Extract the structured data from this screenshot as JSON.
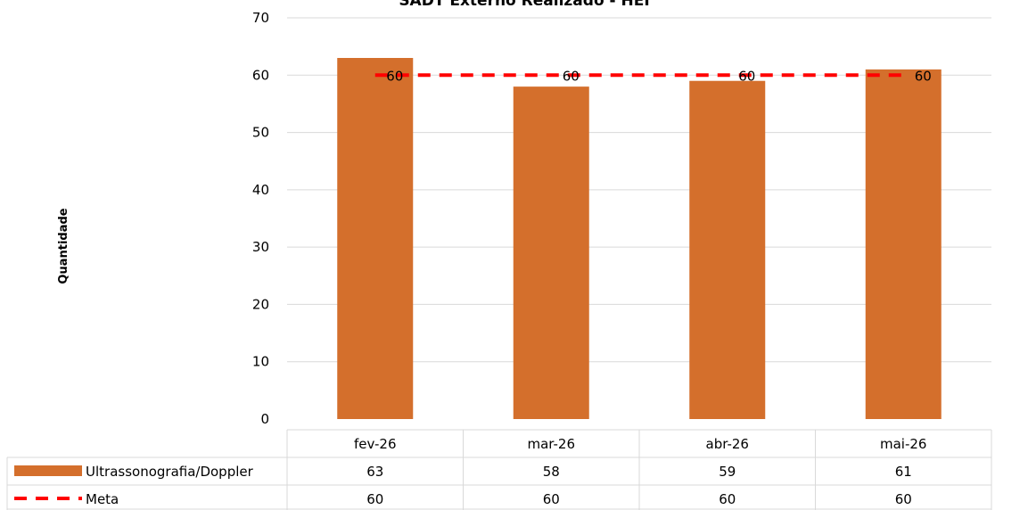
{
  "chart_data": {
    "type": "bar",
    "title": "SADT Externo Realizado - HEI",
    "ylabel": "Quantidade",
    "xlabel": "",
    "categories": [
      "fev-26",
      "mar-26",
      "abr-26",
      "mai-26"
    ],
    "ylim": [
      0,
      70
    ],
    "yticks": [
      0,
      10,
      20,
      30,
      40,
      50,
      60,
      70
    ],
    "grid": true,
    "legend": "bottom-data-table",
    "series": [
      {
        "name": "Ultrassonografia/Doppler",
        "kind": "bar",
        "color": "#d46f2c",
        "values": [
          63,
          58,
          59,
          61
        ]
      },
      {
        "name": "Meta",
        "kind": "line-dashed",
        "color": "#ff0000",
        "values": [
          60,
          60,
          60,
          60
        ]
      }
    ]
  }
}
